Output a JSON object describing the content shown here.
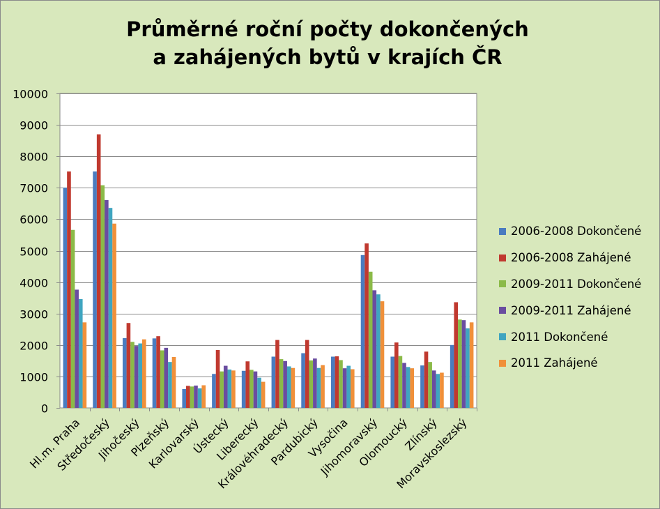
{
  "chart_data": {
    "type": "bar",
    "title_lines": [
      "Průměrné roční počty dokončených",
      "a zahájených bytů v krajích ČR"
    ],
    "categories": [
      "Hl.m. Praha",
      "Středočeský",
      "Jihočeský",
      "Plzeňský",
      "Karlovarský",
      "Ústecký",
      "Liberecký",
      "Královéhradecký",
      "Pardubický",
      "Vysočina",
      "Jihomoravský",
      "Olomoucký",
      "Zlínský",
      "Moravskoslezský"
    ],
    "series": [
      {
        "name": "2006-2008 Dokončené",
        "color": "#4a7cc0",
        "values": [
          7000,
          7520,
          2220,
          2210,
          600,
          1080,
          1180,
          1630,
          1740,
          1630,
          4860,
          1630,
          1350,
          2000
        ]
      },
      {
        "name": "2006-2008 Zahájené",
        "color": "#c0392f",
        "values": [
          7520,
          8700,
          2700,
          2280,
          700,
          1840,
          1480,
          2160,
          2160,
          1640,
          5230,
          2080,
          1790,
          3360
        ]
      },
      {
        "name": "2009-2011 Dokončené",
        "color": "#8bba48",
        "values": [
          5660,
          7080,
          2100,
          1830,
          680,
          1160,
          1210,
          1550,
          1510,
          1520,
          4330,
          1650,
          1460,
          2810
        ]
      },
      {
        "name": "2009-2011 Zahájené",
        "color": "#6a4da0",
        "values": [
          3760,
          6610,
          1970,
          1910,
          710,
          1340,
          1160,
          1490,
          1570,
          1260,
          3740,
          1430,
          1190,
          2790
        ]
      },
      {
        "name": "2011 Dokončené",
        "color": "#3fa5c0",
        "values": [
          3460,
          6360,
          2050,
          1460,
          620,
          1220,
          960,
          1320,
          1270,
          1340,
          3610,
          1300,
          1080,
          2530
        ]
      },
      {
        "name": "2011 Zahájené",
        "color": "#f0903a",
        "values": [
          2720,
          5860,
          2180,
          1620,
          720,
          1190,
          830,
          1270,
          1360,
          1230,
          3390,
          1260,
          1120,
          2720
        ]
      }
    ],
    "ylim": [
      0,
      10000
    ],
    "yticks": [
      "0",
      "1000",
      "2000",
      "3000",
      "4000",
      "5000",
      "6000",
      "7000",
      "8000",
      "9000",
      "10000"
    ],
    "grid": true,
    "legend_position": "right"
  }
}
